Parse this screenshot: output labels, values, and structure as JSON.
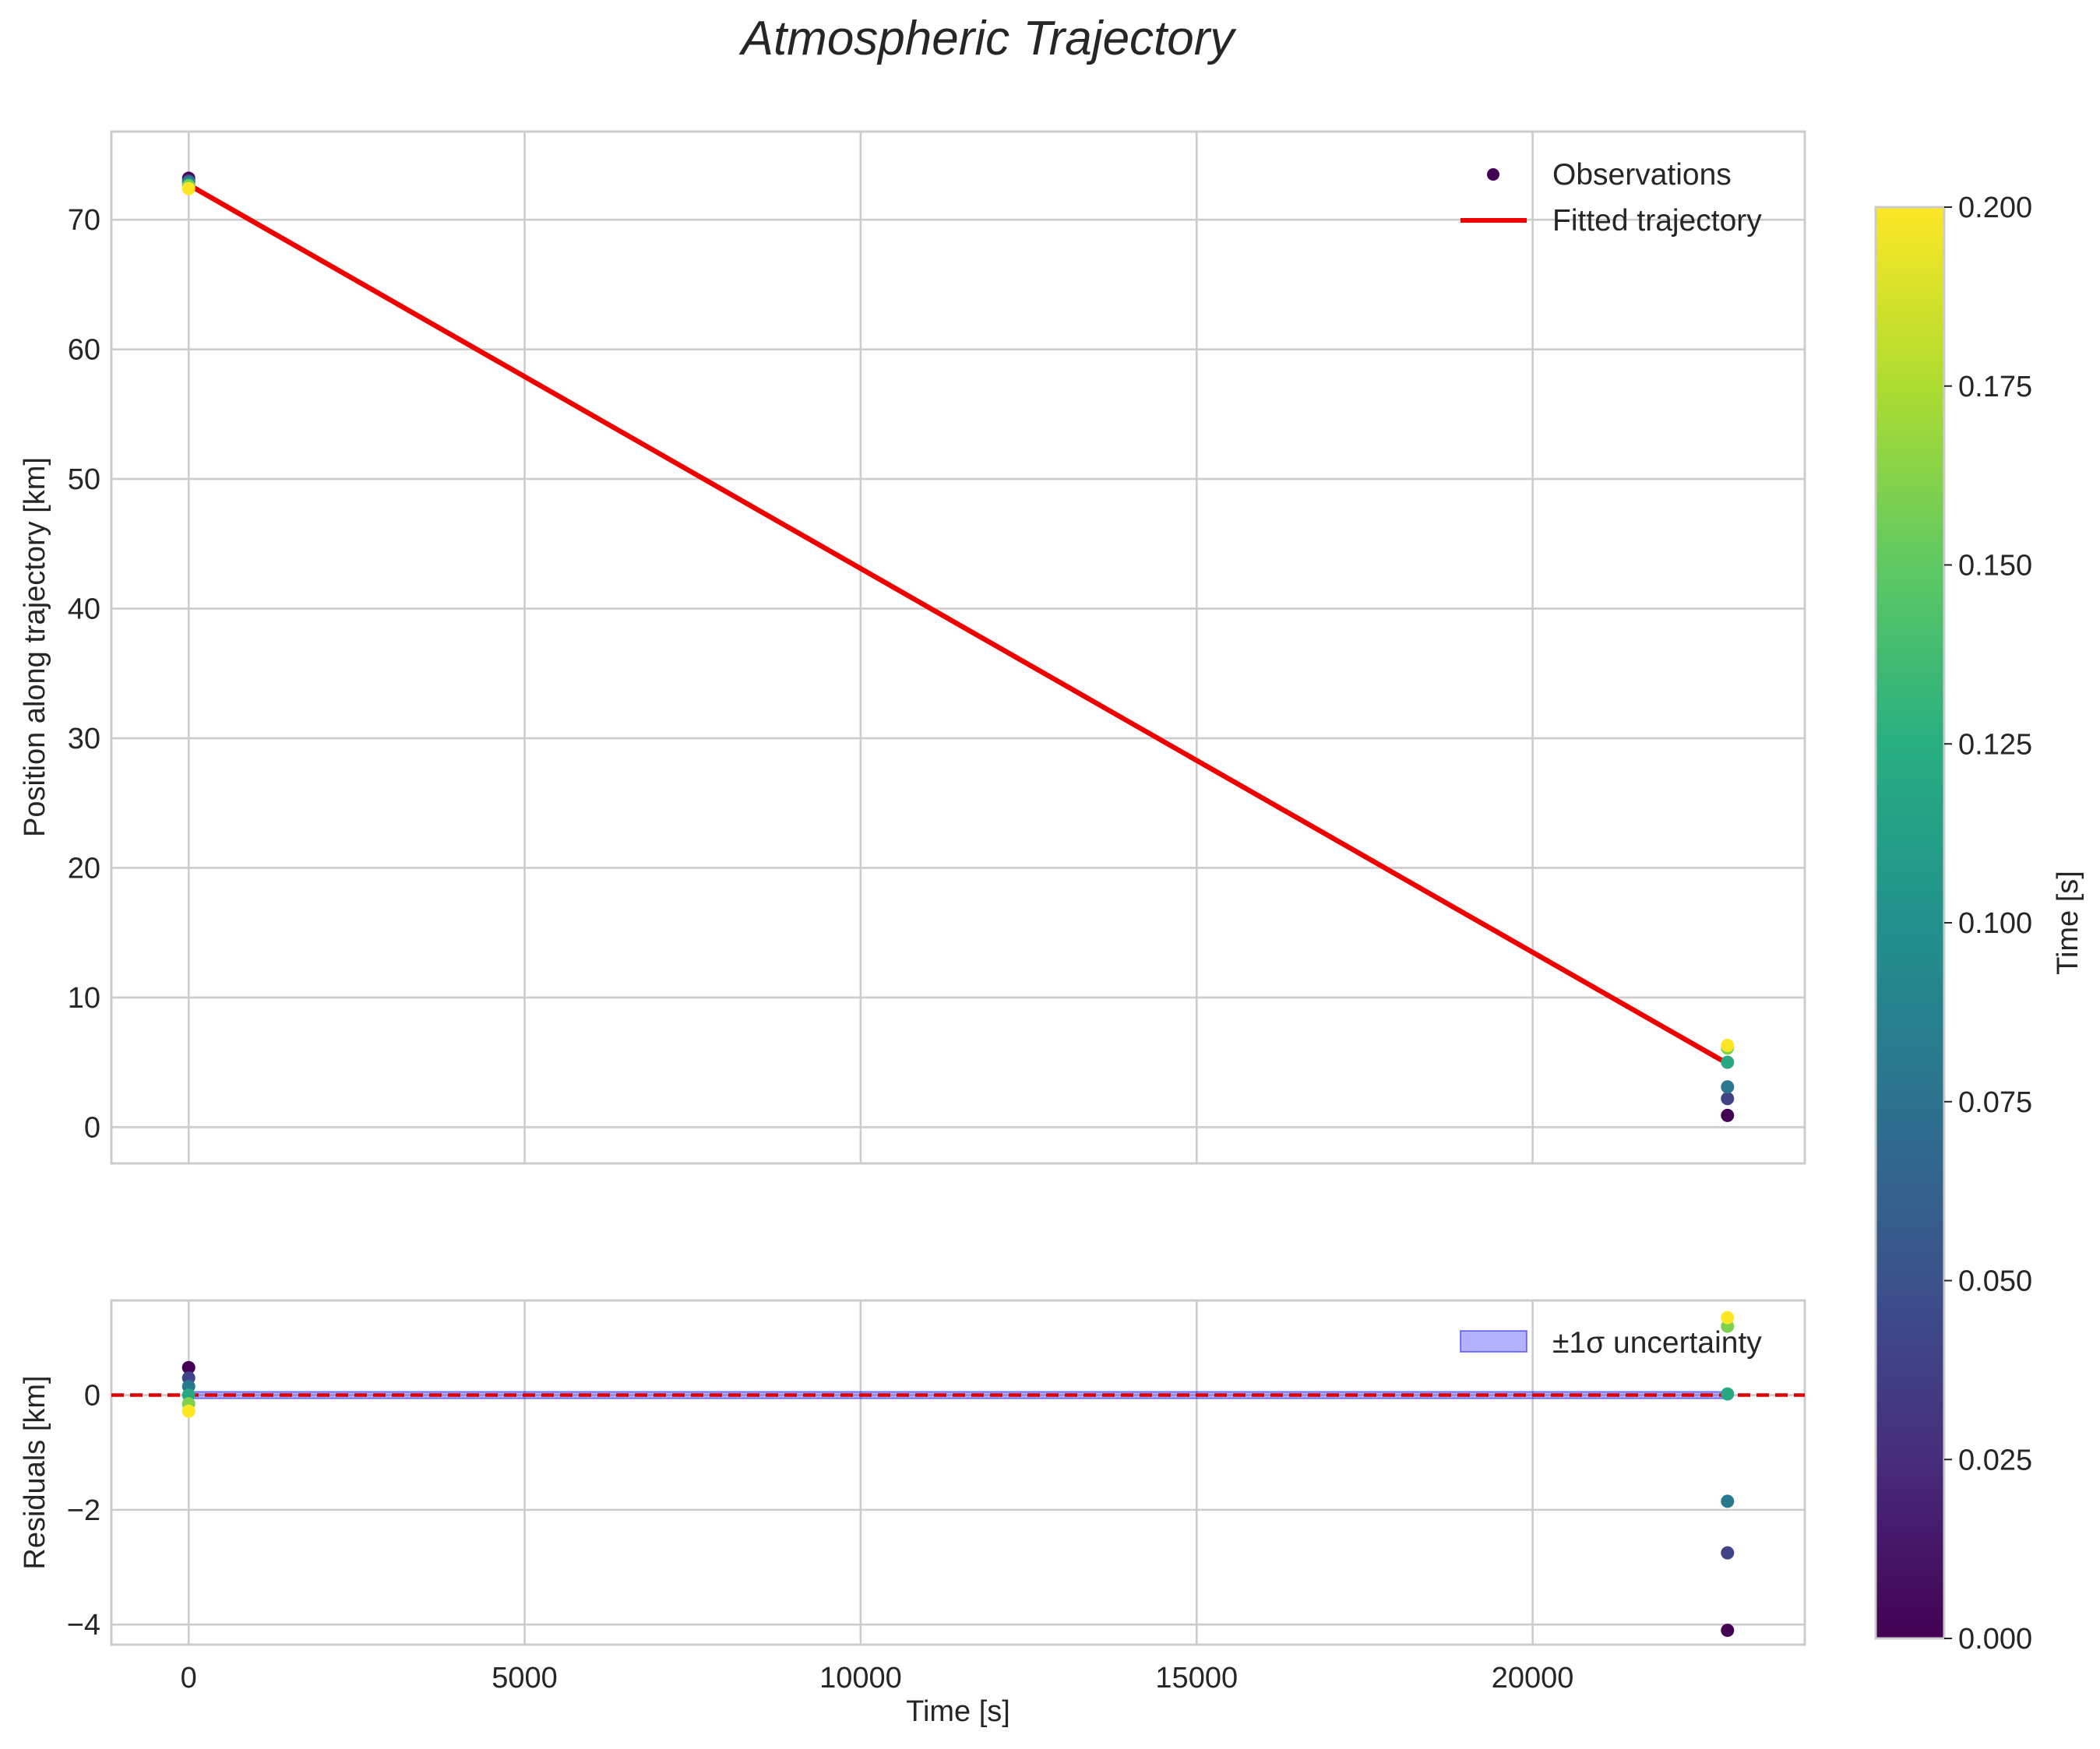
{
  "chart_data": {
    "title": "Atmospheric Trajectory",
    "panels": [
      {
        "type": "scatter+line",
        "name": "position",
        "xlabel": "",
        "ylabel": "Position along trajectory [km]",
        "xlim": [
          -1150,
          24050
        ],
        "ylim": [
          -2.8,
          76.8
        ],
        "xticks": [
          0,
          5000,
          10000,
          15000,
          20000
        ],
        "yticks": [
          0,
          10,
          20,
          30,
          40,
          50,
          60,
          70
        ],
        "ytick_labels": [
          "0",
          "10",
          "20",
          "30",
          "40",
          "50",
          "60",
          "70"
        ],
        "grid": true,
        "legend": {
          "location": "top-right",
          "entries": [
            "Observations",
            "Fitted trajectory"
          ]
        },
        "fit_line": {
          "name": "Fitted trajectory",
          "color": "#ee0000",
          "x": [
            0,
            22900
          ],
          "y": [
            72.7,
            4.9
          ]
        },
        "observations": {
          "name": "Observations",
          "x": [
            0,
            0,
            0,
            0,
            0,
            0,
            22900,
            22900,
            22900,
            22900,
            22900,
            22900
          ],
          "y": [
            73.2,
            73.0,
            72.9,
            72.7,
            72.6,
            72.4,
            0.9,
            2.2,
            3.1,
            5.0,
            6.1,
            6.3
          ],
          "color_value": [
            0.0,
            0.04,
            0.08,
            0.12,
            0.16,
            0.2,
            0.0,
            0.04,
            0.08,
            0.12,
            0.16,
            0.2
          ]
        }
      },
      {
        "type": "scatter+band",
        "name": "residuals",
        "xlabel": "Time [s]",
        "ylabel": "Residuals [km]",
        "xlim": [
          -1150,
          24050
        ],
        "ylim": [
          -4.35,
          1.65
        ],
        "xticks": [
          0,
          5000,
          10000,
          15000,
          20000
        ],
        "xtick_labels": [
          "0",
          "5000",
          "10000",
          "15000",
          "20000"
        ],
        "yticks": [
          -4,
          -2,
          0
        ],
        "ytick_labels": [
          "−4",
          "−2",
          "0"
        ],
        "grid": true,
        "legend": {
          "location": "top-right",
          "entries": [
            "±1σ uncertainty"
          ]
        },
        "zero_line": {
          "y": 0,
          "color": "#dd0000",
          "style": "dashed"
        },
        "band": {
          "name": "±1σ uncertainty",
          "color": "#0000ff",
          "x": [
            0,
            22900
          ],
          "lower": -0.03,
          "upper": 0.03
        },
        "residuals": {
          "x": [
            0,
            0,
            0,
            0,
            0,
            0,
            22900,
            22900,
            22900,
            22900,
            22900,
            22900
          ],
          "y": [
            0.48,
            0.3,
            0.15,
            0.0,
            -0.15,
            -0.28,
            -4.1,
            -2.75,
            -1.85,
            0.02,
            1.2,
            1.35
          ],
          "color_value": [
            0.0,
            0.04,
            0.08,
            0.12,
            0.16,
            0.2,
            0.0,
            0.04,
            0.08,
            0.12,
            0.16,
            0.2
          ]
        }
      }
    ],
    "colorbar": {
      "label": "Time [s]",
      "colormap": "viridis",
      "range": [
        0.0,
        0.2
      ],
      "ticks": [
        "0.000",
        "0.025",
        "0.050",
        "0.075",
        "0.100",
        "0.125",
        "0.150",
        "0.175",
        "0.200"
      ]
    }
  }
}
